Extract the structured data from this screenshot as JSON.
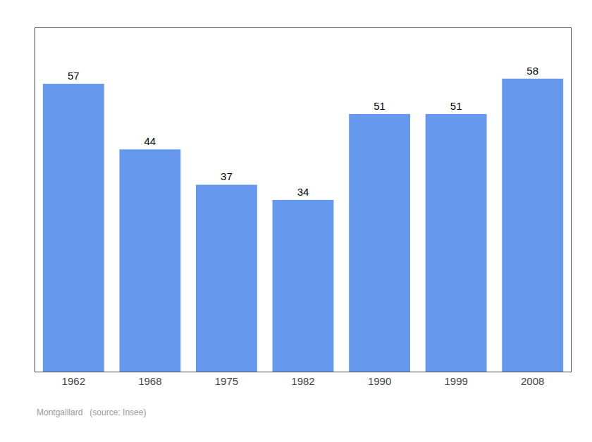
{
  "chart_data": {
    "type": "bar",
    "categories": [
      "1962",
      "1968",
      "1975",
      "1982",
      "1990",
      "1999",
      "2008"
    ],
    "values": [
      57,
      44,
      37,
      34,
      51,
      51,
      58
    ],
    "color": "#6699EE",
    "ylim": [
      0,
      68
    ],
    "data_labels": true,
    "tick_labels": "x",
    "grid": false,
    "annotations": [
      "Montgaillard   (source: Insee)"
    ]
  }
}
